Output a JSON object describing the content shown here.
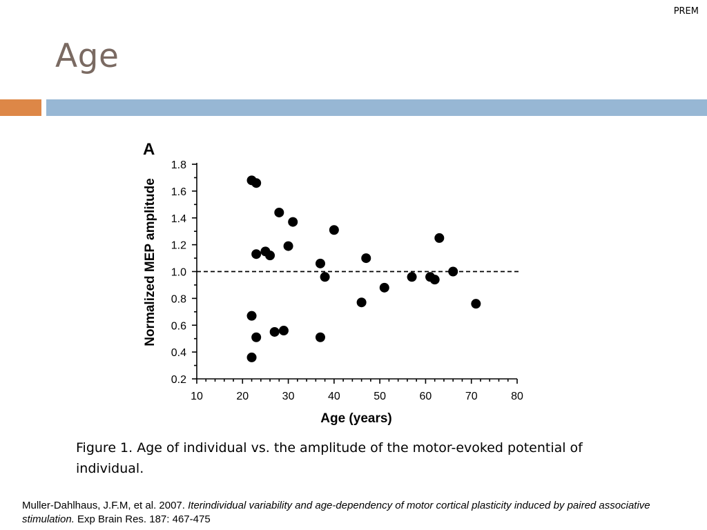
{
  "header": {
    "corner_tag": "PREM",
    "title": "Age"
  },
  "colors": {
    "title": "#7a6a62",
    "accent_orange": "#dd8747",
    "accent_blue": "#97b7d4",
    "points": "#000000"
  },
  "chart_data": {
    "type": "scatter",
    "panel_label": "A",
    "xlabel": "Age (years)",
    "ylabel": "Normalized MEP amplitude",
    "xlim": [
      10,
      80
    ],
    "ylim": [
      0.2,
      1.8
    ],
    "x_ticks": [
      "10",
      "20",
      "30",
      "40",
      "50",
      "60",
      "70",
      "80"
    ],
    "y_ticks": [
      "0.2",
      "0.4",
      "0.6",
      "0.8",
      "1.0",
      "1.2",
      "1.4",
      "1.6",
      "1.8"
    ],
    "reference_line": {
      "y": 1.0,
      "style": "dashed"
    },
    "grid": false,
    "points": [
      {
        "x": 22,
        "y": 1.68
      },
      {
        "x": 23,
        "y": 1.66
      },
      {
        "x": 28,
        "y": 1.44
      },
      {
        "x": 31,
        "y": 1.37
      },
      {
        "x": 40,
        "y": 1.31
      },
      {
        "x": 63,
        "y": 1.25
      },
      {
        "x": 30,
        "y": 1.19
      },
      {
        "x": 25,
        "y": 1.15
      },
      {
        "x": 23,
        "y": 1.13
      },
      {
        "x": 26,
        "y": 1.12
      },
      {
        "x": 47,
        "y": 1.1
      },
      {
        "x": 37,
        "y": 1.06
      },
      {
        "x": 66,
        "y": 1.0
      },
      {
        "x": 38,
        "y": 0.96
      },
      {
        "x": 57,
        "y": 0.96
      },
      {
        "x": 61,
        "y": 0.96
      },
      {
        "x": 62,
        "y": 0.94
      },
      {
        "x": 51,
        "y": 0.88
      },
      {
        "x": 46,
        "y": 0.77
      },
      {
        "x": 71,
        "y": 0.76
      },
      {
        "x": 22,
        "y": 0.67
      },
      {
        "x": 29,
        "y": 0.56
      },
      {
        "x": 27,
        "y": 0.55
      },
      {
        "x": 23,
        "y": 0.51
      },
      {
        "x": 37,
        "y": 0.51
      },
      {
        "x": 22,
        "y": 0.36
      }
    ]
  },
  "caption": "Figure 1. Age of individual vs. the amplitude of the motor-evoked potential of individual.",
  "reference": {
    "authors": "Muller-Dahlhaus, J.F.M, et al. 2007. ",
    "title": "Iterindividual variability and age-dependency of motor cortical plasticity induced by paired associative stimulation.",
    "source": " Exp Brain Res. 187: 467-475"
  }
}
